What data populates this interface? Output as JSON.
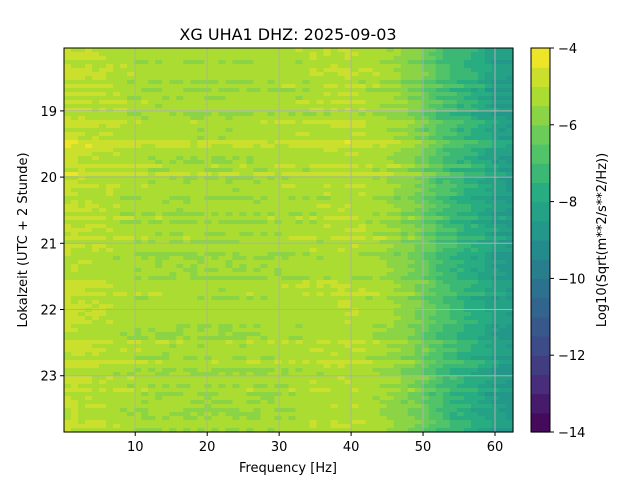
{
  "chart_data": {
    "type": "heatmap",
    "title": "XG UHA1  DHZ: 2025-09-03",
    "xlabel": "Frequency [Hz]",
    "ylabel": "Lokalzeit (UTC + 2 Stunde)",
    "colorbar_label": "Log10(Sqrt(m**2/s**2/Hz))",
    "colormap": "viridis",
    "xlim": [
      0.1,
      62.5
    ],
    "ylim": [
      18.05,
      23.85
    ],
    "y_inverted": true,
    "x_ticks": [
      10,
      20,
      30,
      40,
      50,
      60
    ],
    "x_tick_labels": [
      "10",
      "20",
      "30",
      "40",
      "50",
      "60"
    ],
    "y_ticks": [
      19,
      20,
      21,
      22,
      23
    ],
    "y_tick_labels": [
      "19",
      "20",
      "21",
      "22",
      "23"
    ],
    "color_range": [
      -14,
      -4
    ],
    "colorbar_ticks": [
      -4,
      -6,
      -8,
      -10,
      -12,
      -14
    ],
    "colorbar_tick_labels": [
      "−4",
      "−6",
      "−8",
      "−10",
      "−12",
      "−14"
    ],
    "grid": true,
    "spectrum_profile": {
      "frequency_hz": [
        0.1,
        5,
        10,
        20,
        30,
        40,
        45,
        48,
        50,
        52,
        55,
        58,
        60,
        62.5
      ],
      "log10_amplitude": [
        -4.9,
        -5.1,
        -5.3,
        -5.4,
        -5.3,
        -5.1,
        -5.4,
        -5.8,
        -6.2,
        -6.8,
        -7.4,
        -7.8,
        -8.3,
        -8.6
      ]
    }
  },
  "colors": {
    "grid": "#b0b0b0",
    "viridis_low": "#440154",
    "viridis_high": "#fde725"
  }
}
